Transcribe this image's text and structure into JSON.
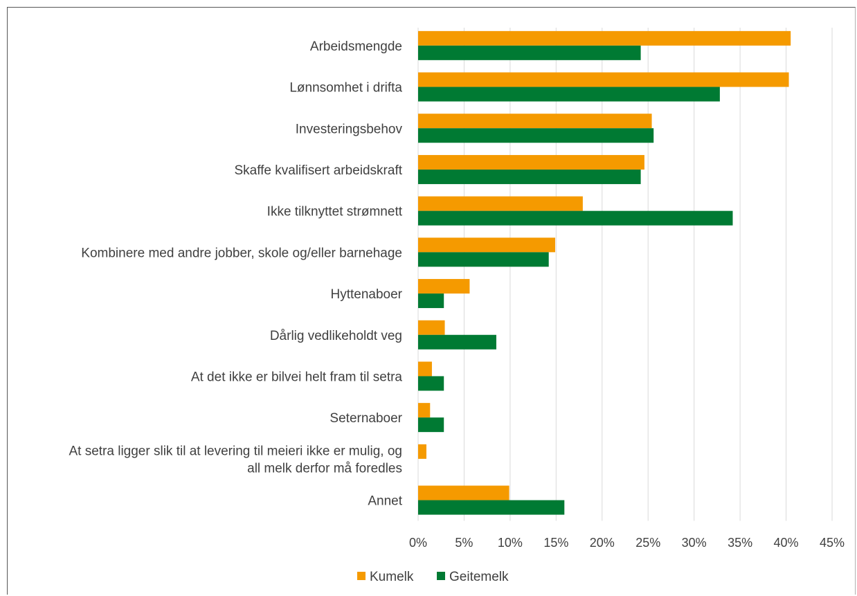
{
  "chart_data": {
    "type": "bar",
    "orientation": "horizontal",
    "categories": [
      [
        "Arbeidsmengde"
      ],
      [
        "Lønnsomhet i drifta"
      ],
      [
        "Investeringsbehov"
      ],
      [
        "Skaffe kvalifisert arbeidskraft"
      ],
      [
        "Ikke tilknyttet strømnett"
      ],
      [
        "Kombinere med andre jobber, skole og/eller barnehage"
      ],
      [
        "Hyttenaboer"
      ],
      [
        "Dårlig vedlikeholdt veg"
      ],
      [
        "At det ikke er bilvei helt fram til setra"
      ],
      [
        "Seternaboer"
      ],
      [
        "At setra ligger slik til at levering til meieri ikke er mulig, og",
        "all melk derfor må foredles"
      ],
      [
        "Annet"
      ]
    ],
    "series": [
      {
        "name": "Kumelk",
        "color": "#f59a00",
        "values": [
          40.5,
          40.3,
          25.4,
          24.6,
          17.9,
          14.9,
          5.6,
          2.9,
          1.5,
          1.3,
          0.9,
          9.9
        ]
      },
      {
        "name": "Geitemelk",
        "color": "#007a33",
        "values": [
          24.2,
          32.8,
          25.6,
          24.2,
          34.2,
          14.2,
          2.8,
          8.5,
          2.8,
          2.8,
          0,
          15.9
        ]
      }
    ],
    "x_ticks": [
      "0%",
      "5%",
      "10%",
      "15%",
      "20%",
      "25%",
      "30%",
      "35%",
      "40%",
      "45%"
    ],
    "xlim": [
      0,
      45
    ],
    "grid": "vertical",
    "legend": "bottom-center"
  }
}
